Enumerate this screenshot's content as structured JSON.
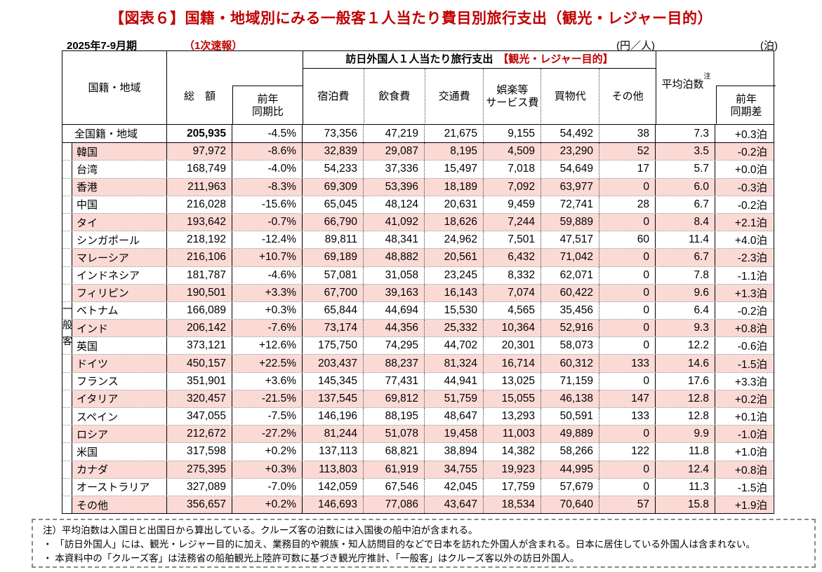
{
  "title": "【図表６】国籍・地域別にみる一般客１人当たり費目別旅行支出（観光・レジャー目的）",
  "period": "2025年7-9月期",
  "release": "（1次速報）",
  "unit_yen": "(円／人)",
  "unit_nights": "(泊)",
  "colors": {
    "accent_red": "#c00000",
    "row_pink": "#fbdad6"
  },
  "table": {
    "header": {
      "nationality": "国籍・地域",
      "total": "総　額",
      "yoy": "前年\n同期比",
      "group_title": "訪日外国人１人当たり旅行支出",
      "group_title_red": "【観光・レジャー目的】",
      "items": [
        "宿泊費",
        "飲食費",
        "交通費",
        "娯楽等\nサービス費",
        "買物代",
        "その他"
      ],
      "avg_nights": "平均泊数",
      "avg_nights_note_mark": "注",
      "nights_diff": "前年\n同期差"
    },
    "group_label": "一般客",
    "rows": [
      {
        "name": "全国籍・地域",
        "total": "205,935",
        "yoy": "-4.5%",
        "lodging": "73,356",
        "food": "47,219",
        "transport": "21,675",
        "entertainment": "9,155",
        "shopping": "54,492",
        "other": "38",
        "nights": "7.3",
        "nights_diff": "+0.3泊"
      },
      {
        "name": "韓国",
        "total": "97,972",
        "yoy": "-8.6%",
        "lodging": "32,839",
        "food": "29,087",
        "transport": "8,195",
        "entertainment": "4,509",
        "shopping": "23,290",
        "other": "52",
        "nights": "3.5",
        "nights_diff": "-0.2泊"
      },
      {
        "name": "台湾",
        "total": "168,749",
        "yoy": "-4.0%",
        "lodging": "54,233",
        "food": "37,336",
        "transport": "15,497",
        "entertainment": "7,018",
        "shopping": "54,649",
        "other": "17",
        "nights": "5.7",
        "nights_diff": "+0.0泊"
      },
      {
        "name": "香港",
        "total": "211,963",
        "yoy": "-8.3%",
        "lodging": "69,309",
        "food": "53,396",
        "transport": "18,189",
        "entertainment": "7,092",
        "shopping": "63,977",
        "other": "0",
        "nights": "6.0",
        "nights_diff": "-0.3泊"
      },
      {
        "name": "中国",
        "total": "216,028",
        "yoy": "-15.6%",
        "lodging": "65,045",
        "food": "48,124",
        "transport": "20,631",
        "entertainment": "9,459",
        "shopping": "72,741",
        "other": "28",
        "nights": "6.7",
        "nights_diff": "-0.2泊"
      },
      {
        "name": "タイ",
        "total": "193,642",
        "yoy": "-0.7%",
        "lodging": "66,790",
        "food": "41,092",
        "transport": "18,626",
        "entertainment": "7,244",
        "shopping": "59,889",
        "other": "0",
        "nights": "8.4",
        "nights_diff": "+2.1泊"
      },
      {
        "name": "シンガポール",
        "total": "218,192",
        "yoy": "-12.4%",
        "lodging": "89,811",
        "food": "48,341",
        "transport": "24,962",
        "entertainment": "7,501",
        "shopping": "47,517",
        "other": "60",
        "nights": "11.4",
        "nights_diff": "+4.0泊"
      },
      {
        "name": "マレーシア",
        "total": "216,106",
        "yoy": "+10.7%",
        "lodging": "69,189",
        "food": "48,882",
        "transport": "20,561",
        "entertainment": "6,432",
        "shopping": "71,042",
        "other": "0",
        "nights": "6.7",
        "nights_diff": "-2.3泊"
      },
      {
        "name": "インドネシア",
        "total": "181,787",
        "yoy": "-4.6%",
        "lodging": "57,081",
        "food": "31,058",
        "transport": "23,245",
        "entertainment": "8,332",
        "shopping": "62,071",
        "other": "0",
        "nights": "7.8",
        "nights_diff": "-1.1泊"
      },
      {
        "name": "フィリピン",
        "total": "190,501",
        "yoy": "+3.3%",
        "lodging": "67,700",
        "food": "39,163",
        "transport": "16,143",
        "entertainment": "7,074",
        "shopping": "60,422",
        "other": "0",
        "nights": "9.6",
        "nights_diff": "+1.3泊"
      },
      {
        "name": "ベトナム",
        "total": "166,089",
        "yoy": "+0.3%",
        "lodging": "65,844",
        "food": "44,694",
        "transport": "15,530",
        "entertainment": "4,565",
        "shopping": "35,456",
        "other": "0",
        "nights": "6.4",
        "nights_diff": "-0.2泊"
      },
      {
        "name": "インド",
        "total": "206,142",
        "yoy": "-7.6%",
        "lodging": "73,174",
        "food": "44,356",
        "transport": "25,332",
        "entertainment": "10,364",
        "shopping": "52,916",
        "other": "0",
        "nights": "9.3",
        "nights_diff": "+0.8泊"
      },
      {
        "name": "英国",
        "total": "373,121",
        "yoy": "+12.6%",
        "lodging": "175,750",
        "food": "74,295",
        "transport": "44,702",
        "entertainment": "20,301",
        "shopping": "58,073",
        "other": "0",
        "nights": "12.2",
        "nights_diff": "-0.6泊"
      },
      {
        "name": "ドイツ",
        "total": "450,157",
        "yoy": "+22.5%",
        "lodging": "203,437",
        "food": "88,237",
        "transport": "81,324",
        "entertainment": "16,714",
        "shopping": "60,312",
        "other": "133",
        "nights": "14.6",
        "nights_diff": "-1.5泊"
      },
      {
        "name": "フランス",
        "total": "351,901",
        "yoy": "+3.6%",
        "lodging": "145,345",
        "food": "77,431",
        "transport": "44,941",
        "entertainment": "13,025",
        "shopping": "71,159",
        "other": "0",
        "nights": "17.6",
        "nights_diff": "+3.3泊"
      },
      {
        "name": "イタリア",
        "total": "320,457",
        "yoy": "-21.5%",
        "lodging": "137,545",
        "food": "69,812",
        "transport": "51,759",
        "entertainment": "15,055",
        "shopping": "46,138",
        "other": "147",
        "nights": "12.8",
        "nights_diff": "+0.2泊"
      },
      {
        "name": "スペイン",
        "total": "347,055",
        "yoy": "-7.5%",
        "lodging": "146,196",
        "food": "88,195",
        "transport": "48,647",
        "entertainment": "13,293",
        "shopping": "50,591",
        "other": "133",
        "nights": "12.8",
        "nights_diff": "+0.1泊"
      },
      {
        "name": "ロシア",
        "total": "212,672",
        "yoy": "-27.2%",
        "lodging": "81,244",
        "food": "51,078",
        "transport": "19,458",
        "entertainment": "11,003",
        "shopping": "49,889",
        "other": "0",
        "nights": "9.9",
        "nights_diff": "-1.0泊"
      },
      {
        "name": "米国",
        "total": "317,598",
        "yoy": "+0.2%",
        "lodging": "137,113",
        "food": "68,821",
        "transport": "38,894",
        "entertainment": "14,382",
        "shopping": "58,266",
        "other": "122",
        "nights": "11.8",
        "nights_diff": "+1.0泊"
      },
      {
        "name": "カナダ",
        "total": "275,395",
        "yoy": "+0.3%",
        "lodging": "113,803",
        "food": "61,919",
        "transport": "34,755",
        "entertainment": "19,923",
        "shopping": "44,995",
        "other": "0",
        "nights": "12.4",
        "nights_diff": "+0.8泊"
      },
      {
        "name": "オーストラリア",
        "total": "327,089",
        "yoy": "-7.0%",
        "lodging": "142,059",
        "food": "67,546",
        "transport": "42,045",
        "entertainment": "17,759",
        "shopping": "57,679",
        "other": "0",
        "nights": "11.3",
        "nights_diff": "-1.5泊"
      },
      {
        "name": "その他",
        "total": "356,657",
        "yoy": "+0.2%",
        "lodging": "146,693",
        "food": "77,086",
        "transport": "43,647",
        "entertainment": "18,534",
        "shopping": "70,640",
        "other": "57",
        "nights": "15.8",
        "nights_diff": "+1.9泊"
      }
    ]
  },
  "notes": [
    "注）平均泊数は入国日と出国日から算出している。クルーズ客の泊数には入国後の船中泊が含まれる。",
    "・ 「訪日外国人」には、観光・レジャー目的に加え、業務目的や親族・知人訪問目的などで日本を訪れた外国人が含まれる。日本に居住している外国人は含まれない。",
    "・ 本資料中の「クルーズ客」は法務省の船舶観光上陸許可数に基づき観光庁推計、「一般客」はクルーズ客以外の訪日外国人。"
  ]
}
